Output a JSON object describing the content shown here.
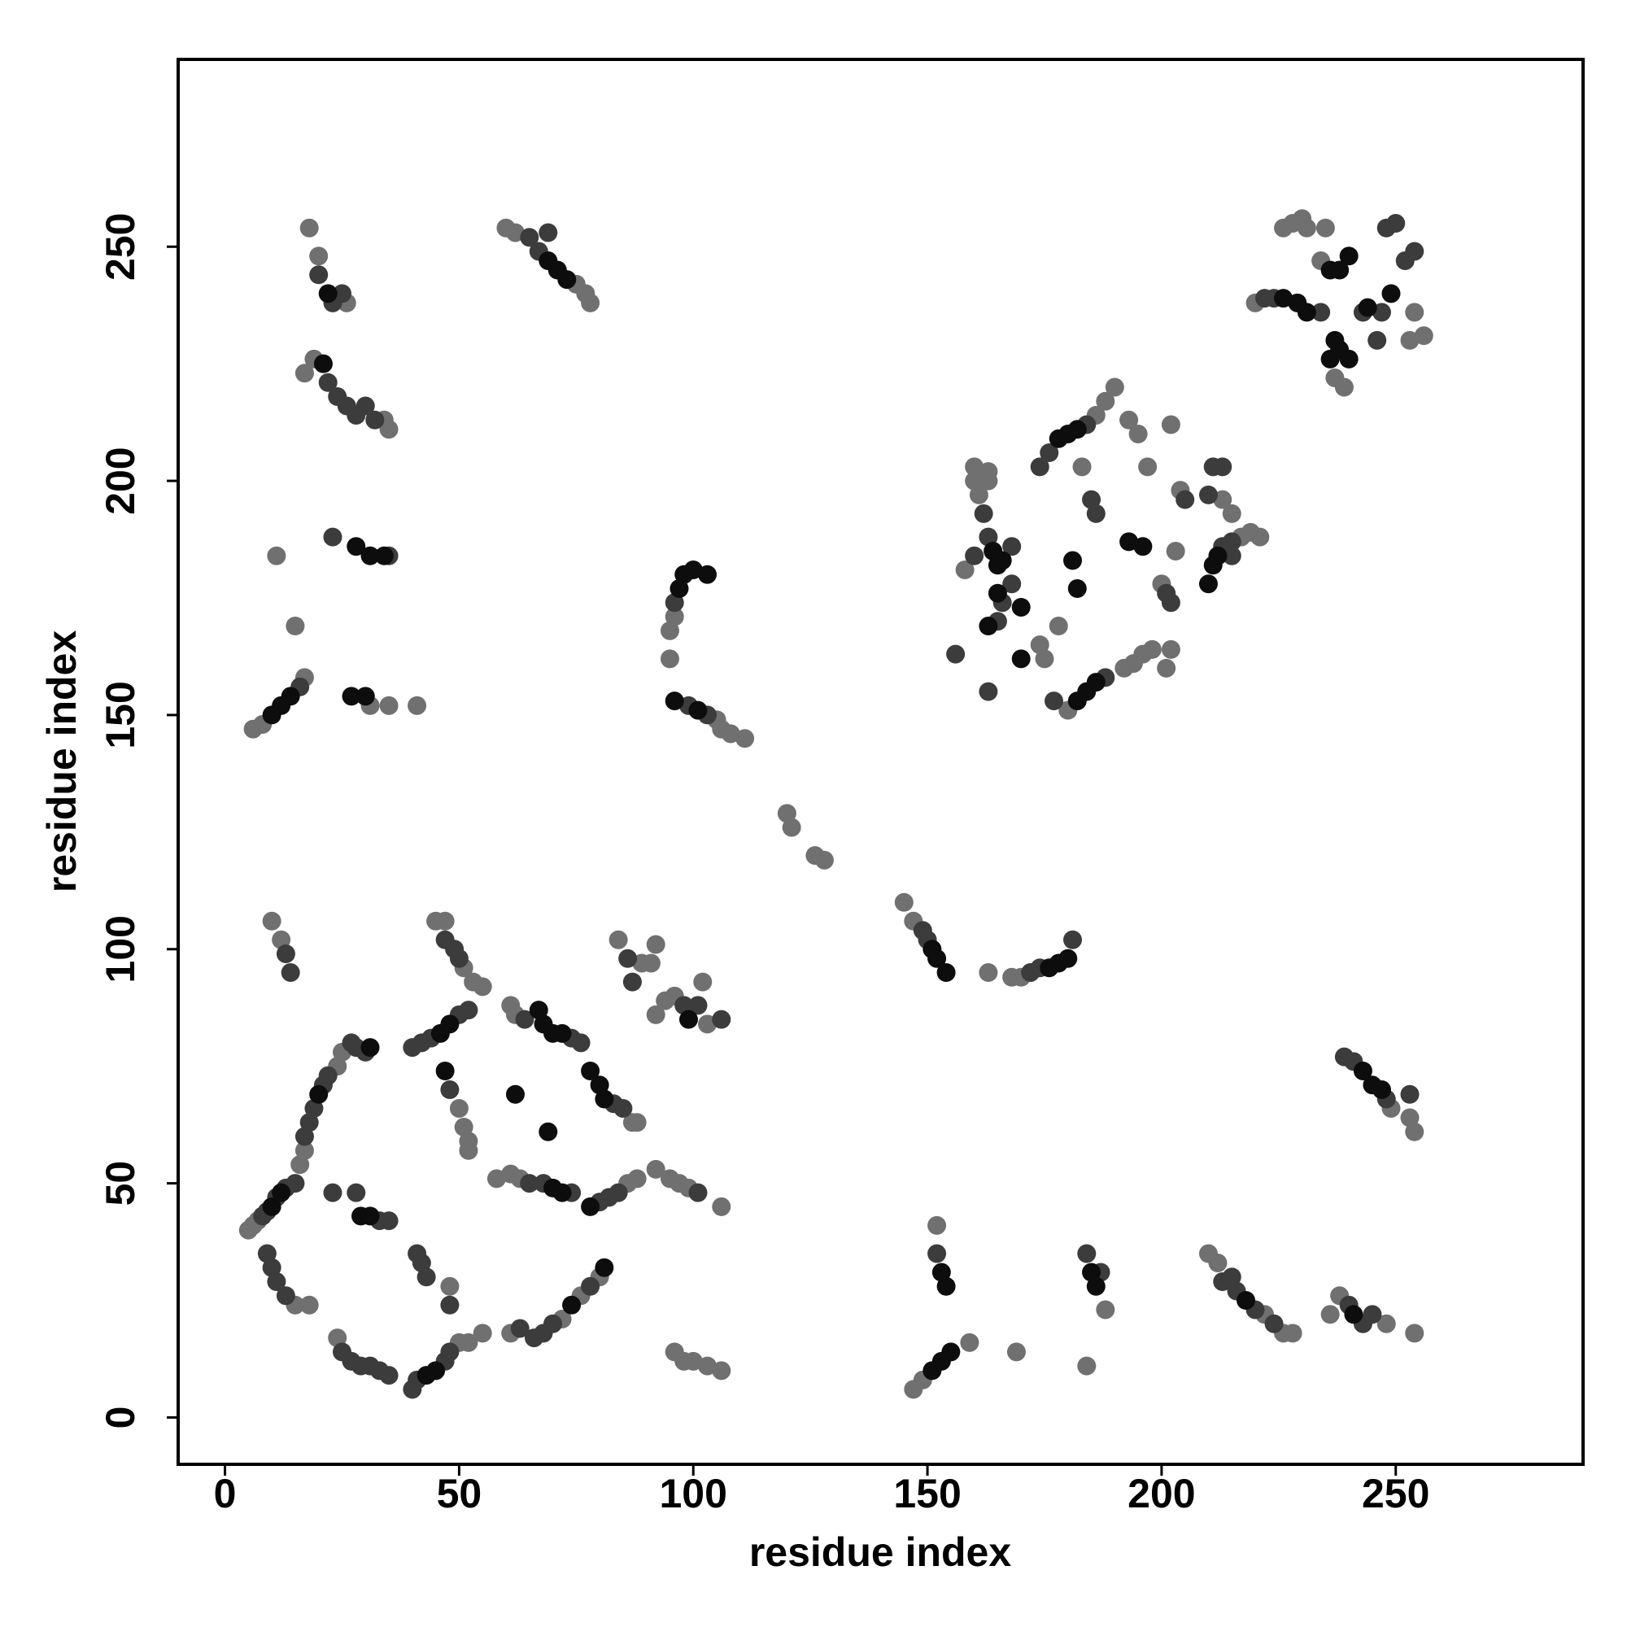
{
  "chart_data": {
    "type": "scatter",
    "x_label": "residue index",
    "y_label": "residue index",
    "xlim": [
      -10,
      290
    ],
    "ylim": [
      -10,
      290
    ],
    "xticks": [
      0,
      50,
      100,
      150,
      200,
      250
    ],
    "yticks": [
      0,
      50,
      100,
      150,
      200,
      250
    ],
    "series": [
      {
        "color": "#707070",
        "x": [
          5,
          6,
          7,
          16,
          17,
          24,
          25,
          15,
          18,
          24,
          50,
          52,
          55,
          61,
          72,
          76,
          80,
          48,
          52,
          52,
          51,
          50,
          45,
          47,
          53,
          55,
          51,
          10,
          12,
          61,
          62,
          87,
          88,
          58,
          61,
          63,
          86,
          88,
          92,
          95,
          97,
          99,
          106,
          84,
          89,
          91,
          92,
          92,
          94,
          96,
          102,
          103,
          96,
          98,
          100,
          103,
          106,
          145,
          147,
          163,
          168,
          170,
          147,
          149,
          159,
          152,
          169,
          188,
          184,
          210,
          212,
          222,
          226,
          228,
          236,
          238,
          248,
          254,
          253,
          254,
          249,
          18,
          20,
          26,
          17,
          19,
          34,
          35,
          11,
          15,
          6,
          8,
          17,
          31,
          35,
          41,
          60,
          62,
          75,
          77,
          78,
          95,
          95,
          96,
          105,
          106,
          108,
          111,
          120,
          121,
          126,
          128,
          161,
          160,
          163,
          160,
          163,
          158,
          175,
          180,
          188,
          190,
          186,
          192,
          194,
          196,
          198,
          202,
          201,
          193,
          195,
          202,
          197,
          204,
          200,
          217,
          219,
          221,
          213,
          215,
          226,
          228,
          230,
          231,
          235,
          234,
          256,
          253,
          254,
          237,
          239,
          220,
          178,
          174,
          183,
          203
        ],
        "values": [
          40,
          41,
          42,
          54,
          57,
          75,
          78,
          24,
          24,
          17,
          16,
          16,
          18,
          18,
          21,
          26,
          30,
          28,
          59,
          57,
          62,
          66,
          106,
          106,
          93,
          92,
          96,
          106,
          102,
          88,
          86,
          63,
          63,
          51,
          52,
          51,
          50,
          51,
          53,
          51,
          50,
          49,
          45,
          102,
          97,
          97,
          101,
          86,
          89,
          90,
          93,
          84,
          14,
          12,
          12,
          11,
          10,
          110,
          106,
          95,
          94,
          94,
          6,
          8,
          16,
          41,
          14,
          23,
          11,
          35,
          33,
          22,
          18,
          18,
          22,
          26,
          20,
          18,
          64,
          61,
          66,
          254,
          248,
          238,
          223,
          226,
          213,
          211,
          184,
          169,
          147,
          148,
          158,
          152,
          152,
          152,
          254,
          253,
          242,
          240,
          238,
          162,
          168,
          171,
          149,
          147,
          146,
          145,
          129,
          126,
          120,
          119,
          197,
          203,
          200,
          200,
          202,
          181,
          162,
          151,
          217,
          220,
          214,
          160,
          161,
          163,
          164,
          164,
          160,
          213,
          210,
          212,
          203,
          198,
          178,
          188,
          189,
          188,
          196,
          193,
          254,
          255,
          256,
          254,
          254,
          247,
          231,
          230,
          236,
          222,
          220,
          238,
          169,
          165,
          203,
          185
        ]
      },
      {
        "color": "#3c3c3c",
        "x": [
          8,
          9,
          11,
          13,
          15,
          17,
          18,
          19,
          21,
          22,
          27,
          28,
          30,
          9,
          10,
          11,
          13,
          25,
          27,
          29,
          31,
          33,
          35,
          40,
          41,
          47,
          48,
          63,
          66,
          68,
          70,
          78,
          41,
          42,
          43,
          48,
          23,
          28,
          33,
          35,
          40,
          42,
          44,
          50,
          52,
          48,
          47,
          49,
          50,
          13,
          14,
          64,
          74,
          76,
          83,
          85,
          65,
          68,
          74,
          80,
          82,
          84,
          101,
          86,
          87,
          98,
          101,
          106,
          149,
          150,
          172,
          174,
          181,
          152,
          184,
          187,
          213,
          215,
          216,
          220,
          224,
          240,
          243,
          245,
          239,
          241,
          248,
          253,
          20,
          23,
          25,
          22,
          24,
          26,
          28,
          30,
          32,
          23,
          35,
          16,
          65,
          67,
          69,
          96,
          99,
          103,
          162,
          163,
          168,
          160,
          166,
          165,
          163,
          156,
          168,
          177,
          174,
          176,
          184,
          188,
          185,
          186,
          201,
          202,
          205,
          213,
          215,
          210,
          211,
          213,
          215,
          248,
          250,
          252,
          254,
          247,
          246,
          243,
          234,
          224,
          222
        ],
        "values": [
          43,
          44,
          47,
          49,
          50,
          60,
          63,
          66,
          71,
          73,
          80,
          79,
          78,
          35,
          32,
          29,
          26,
          14,
          12,
          11,
          11,
          10,
          9,
          6,
          8,
          12,
          14,
          19,
          17,
          18,
          20,
          28,
          35,
          33,
          30,
          24,
          48,
          48,
          42,
          42,
          79,
          80,
          81,
          86,
          87,
          70,
          102,
          100,
          98,
          99,
          95,
          85,
          81,
          80,
          67,
          66,
          50,
          50,
          48,
          46,
          47,
          48,
          48,
          98,
          93,
          88,
          88,
          85,
          104,
          102,
          95,
          96,
          102,
          35,
          35,
          31,
          29,
          30,
          27,
          23,
          20,
          24,
          20,
          22,
          77,
          76,
          68,
          69,
          244,
          238,
          240,
          221,
          218,
          216,
          214,
          216,
          213,
          188,
          184,
          156,
          252,
          249,
          253,
          174,
          152,
          150,
          193,
          188,
          186,
          184,
          174,
          170,
          155,
          163,
          178,
          153,
          203,
          206,
          212,
          158,
          196,
          193,
          176,
          174,
          196,
          186,
          187,
          197,
          203,
          203,
          184,
          254,
          255,
          247,
          249,
          236,
          230,
          236,
          236,
          239,
          239
        ]
      },
      {
        "color": "#0d0d0d",
        "x": [
          10,
          12,
          20,
          29,
          31,
          31,
          43,
          45,
          46,
          48,
          47,
          67,
          68,
          70,
          72,
          78,
          80,
          81,
          62,
          69,
          70,
          72,
          78,
          99,
          101,
          96,
          97,
          98,
          100,
          103,
          151,
          152,
          154,
          176,
          178,
          180,
          153,
          155,
          151,
          153,
          154,
          186,
          185,
          218,
          241,
          245,
          247,
          243,
          10,
          12,
          14,
          27,
          30,
          28,
          31,
          71,
          73,
          69,
          164,
          165,
          166,
          165,
          163,
          170,
          170,
          181,
          182,
          178,
          180,
          182,
          184,
          186,
          182,
          193,
          196,
          210,
          211,
          212,
          231,
          229,
          226,
          236,
          238,
          240,
          236,
          240,
          238,
          244,
          237,
          249,
          81,
          74,
          22,
          21,
          34
        ],
        "values": [
          45,
          48,
          69,
          43,
          43,
          79,
          9,
          10,
          82,
          84,
          74,
          87,
          84,
          82,
          82,
          74,
          71,
          68,
          69,
          61,
          49,
          48,
          45,
          85,
          151,
          153,
          177,
          180,
          181,
          180,
          100,
          98,
          95,
          96,
          97,
          98,
          12,
          14,
          10,
          31,
          28,
          28,
          31,
          25,
          22,
          71,
          70,
          74,
          150,
          152,
          154,
          154,
          154,
          186,
          184,
          245,
          243,
          247,
          185,
          182,
          183,
          176,
          169,
          173,
          162,
          183,
          177,
          209,
          210,
          211,
          155,
          157,
          153,
          187,
          186,
          178,
          182,
          184,
          236,
          238,
          239,
          245,
          245,
          248,
          226,
          226,
          228,
          237,
          230,
          240,
          32,
          24,
          240,
          225,
          184
        ]
      }
    ]
  }
}
